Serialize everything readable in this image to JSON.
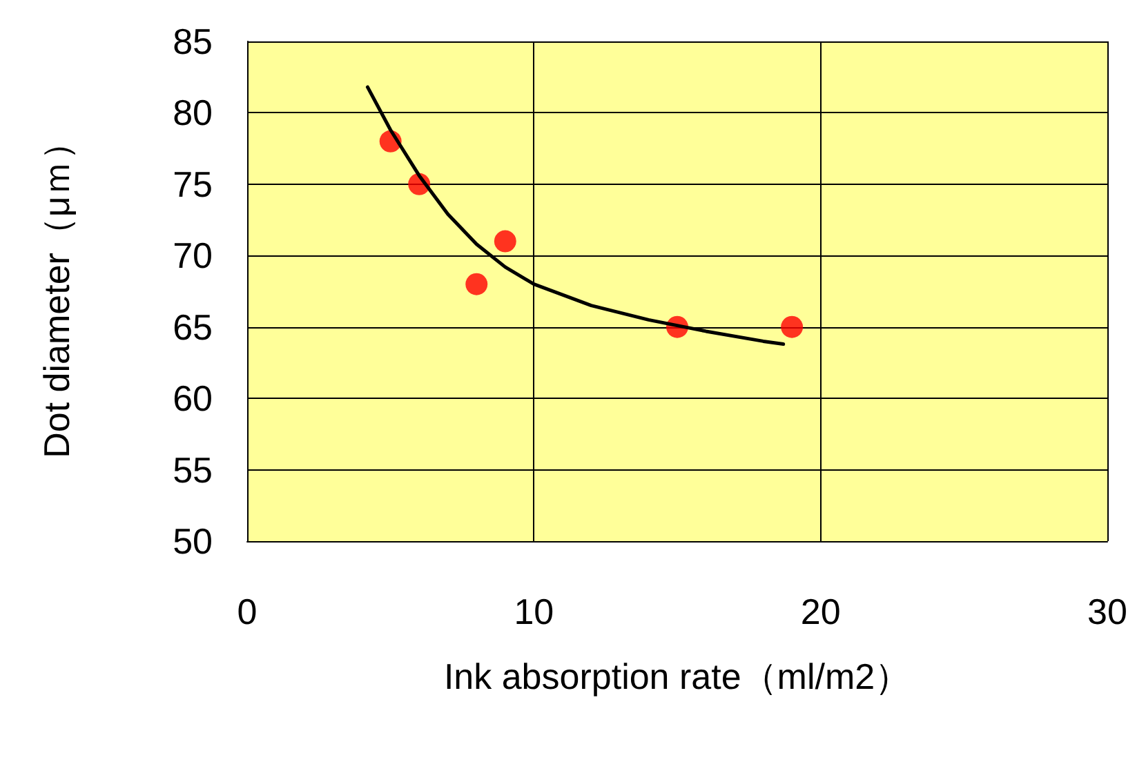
{
  "chart_data": {
    "type": "scatter",
    "xlabel": "Ink absorption rate（ml/m2）",
    "ylabel": "Dot diameter（μｍ）",
    "xlim": [
      0,
      30
    ],
    "xticks": [
      0,
      10,
      20,
      30
    ],
    "ylim": [
      50,
      85
    ],
    "yticks": [
      50,
      55,
      60,
      65,
      70,
      75,
      80,
      85
    ],
    "grid": true,
    "series": [
      {
        "color": "#ff0000",
        "marker": "circle",
        "x": [
          5,
          6,
          8,
          9,
          15,
          19
        ],
        "values": [
          78,
          75,
          68,
          71,
          65,
          65
        ]
      },
      {
        "type": "line",
        "color": "#000000",
        "marker": "none",
        "line_style": "solid",
        "x": [
          4.2,
          5,
          6,
          7,
          8,
          9,
          10,
          12,
          14,
          16,
          18,
          18.7
        ],
        "values": [
          81.8,
          78.8,
          75.6,
          72.9,
          70.8,
          69.2,
          68.0,
          66.5,
          65.5,
          64.7,
          64.0,
          63.8
        ]
      }
    ]
  }
}
